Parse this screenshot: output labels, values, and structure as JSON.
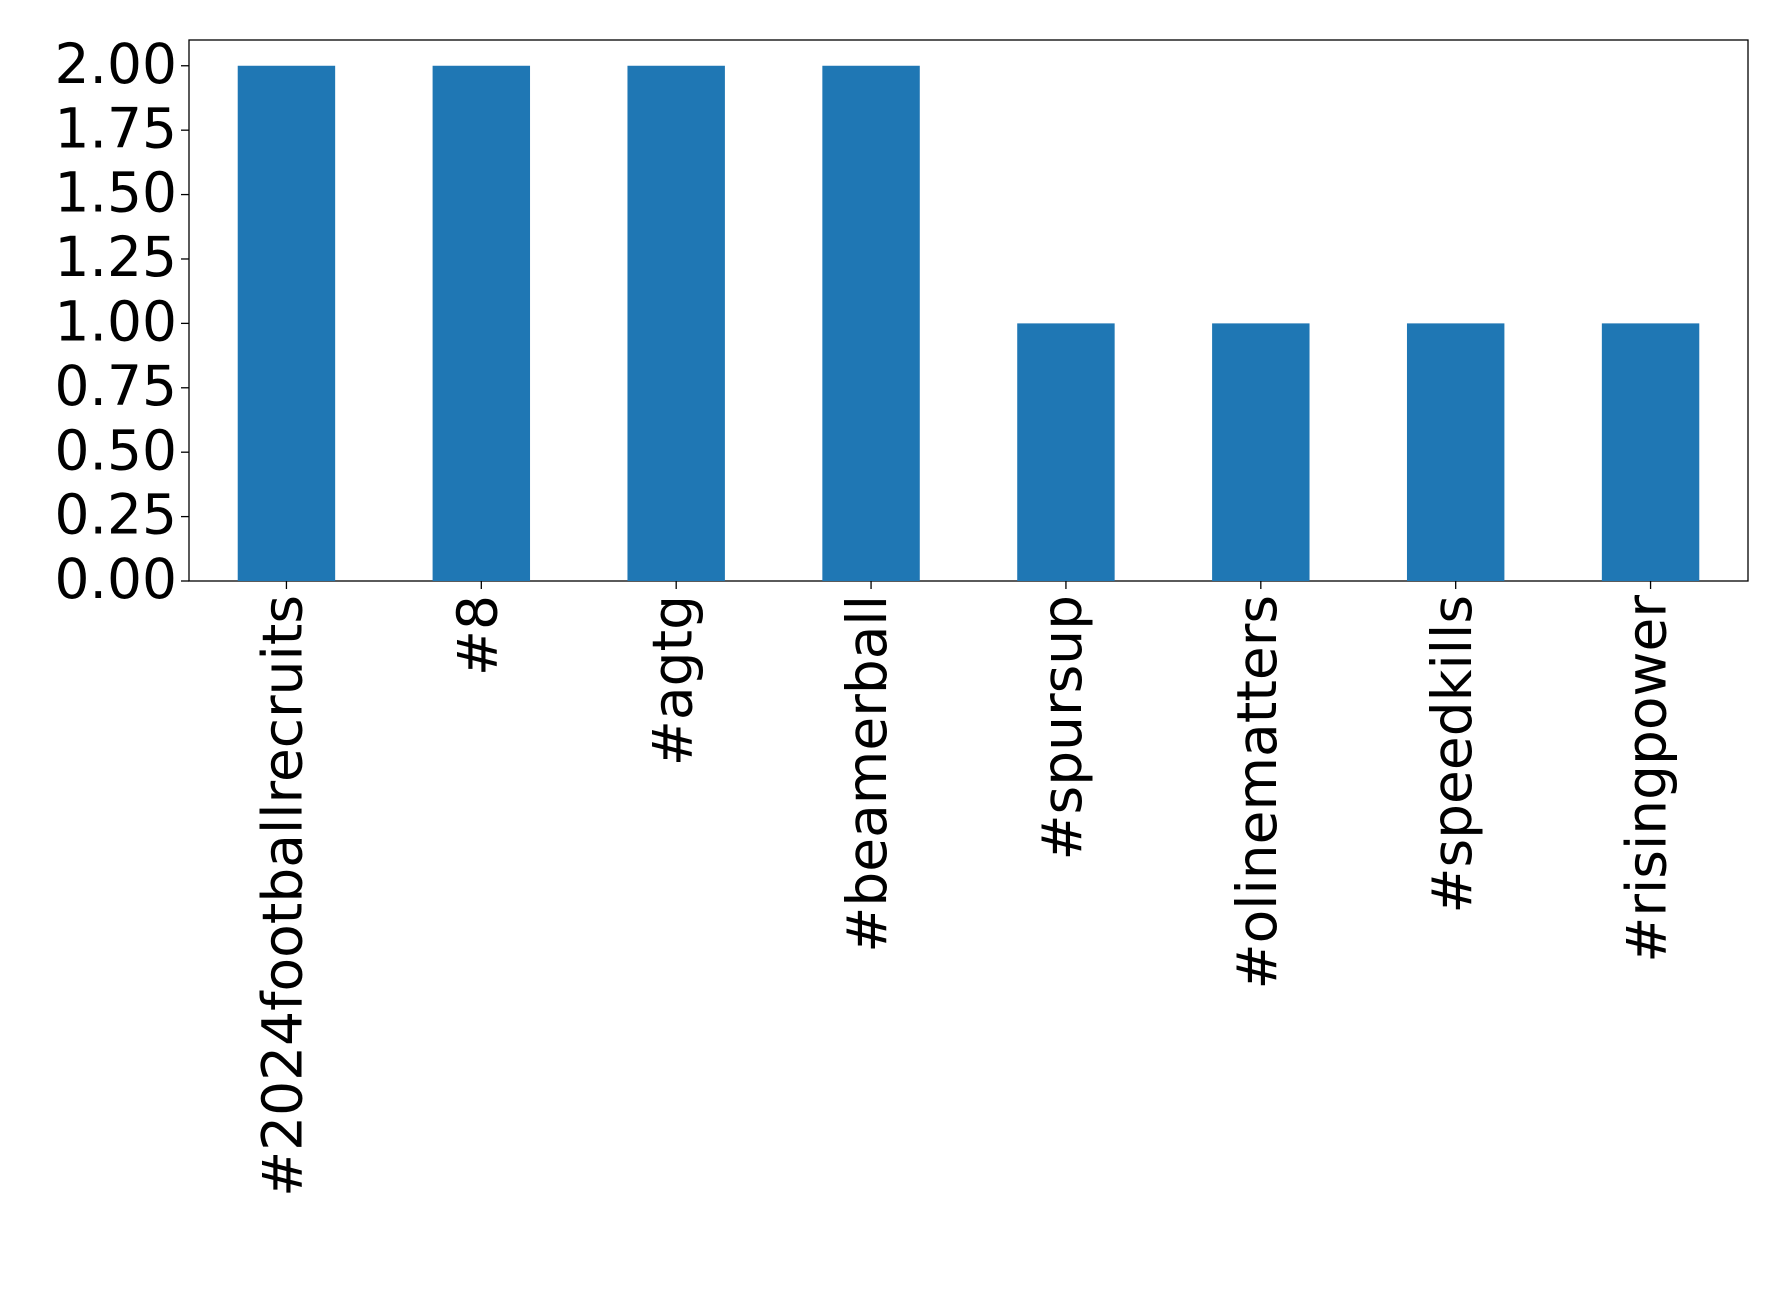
{
  "chart_data": {
    "type": "bar",
    "categories": [
      "#2024footballrecruits",
      "#8",
      "#agtg",
      "#beamerball",
      "#spursup",
      "#olinematters",
      "#speedkills",
      "#risingpower"
    ],
    "values": [
      2,
      2,
      2,
      2,
      1,
      1,
      1,
      1
    ],
    "color": "#1f77b4",
    "ylim": [
      0,
      2.1
    ],
    "yticks": [
      {
        "value": 0,
        "label": "0.00"
      },
      {
        "value": 0.25,
        "label": "0.25"
      },
      {
        "value": 0.5,
        "label": "0.50"
      },
      {
        "value": 0.75,
        "label": "0.75"
      },
      {
        "value": 1,
        "label": "1.00"
      },
      {
        "value": 1.25,
        "label": "1.25"
      },
      {
        "value": 1.5,
        "label": "1.50"
      },
      {
        "value": 1.75,
        "label": "1.75"
      },
      {
        "value": 2,
        "label": "2.00"
      }
    ],
    "grid": false
  }
}
